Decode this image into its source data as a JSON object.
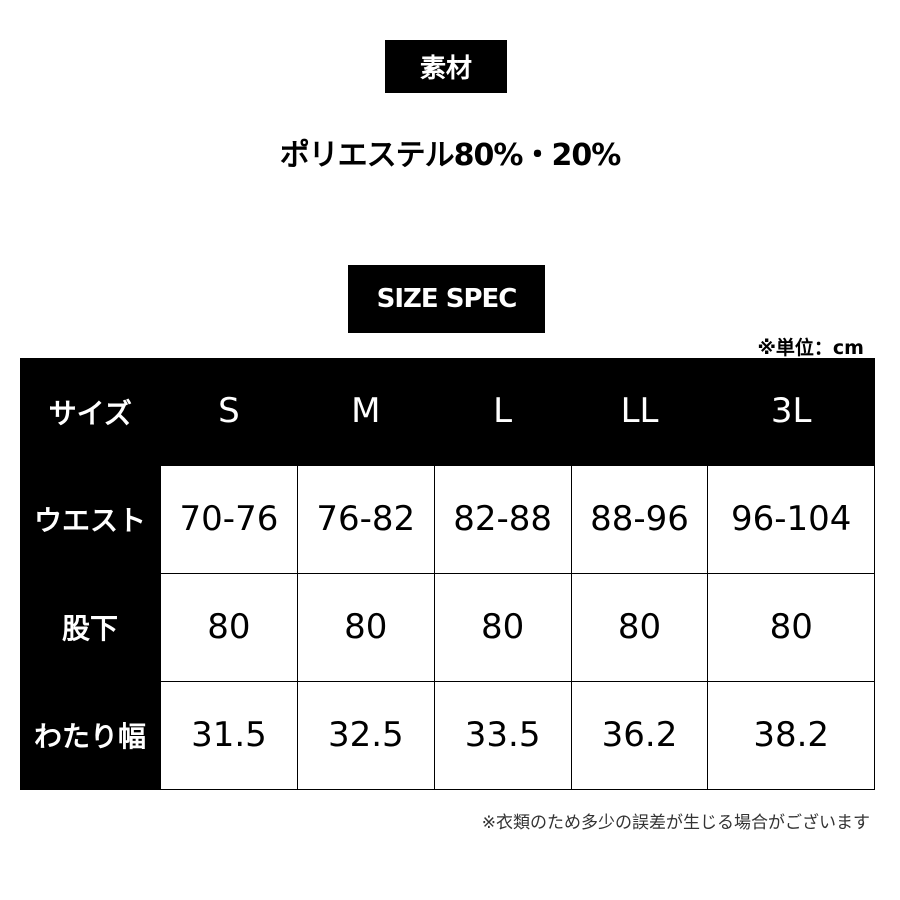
{
  "material": {
    "heading": "素材",
    "text": "ポリエステル80%・20%"
  },
  "spec": {
    "heading": "SIZE SPEC",
    "unit": "※単位：cm",
    "header": [
      "サイズ",
      "S",
      "M",
      "L",
      "LL",
      "3L"
    ],
    "rows": [
      {
        "label": "ウエスト",
        "values": [
          "70-76",
          "76-82",
          "82-88",
          "88-96",
          "96-104"
        ]
      },
      {
        "label": "股下",
        "values": [
          "80",
          "80",
          "80",
          "80",
          "80"
        ]
      },
      {
        "label": "わたり幅",
        "values": [
          "31.5",
          "32.5",
          "33.5",
          "36.2",
          "38.2"
        ]
      }
    ]
  },
  "note": "※衣類のため多少の誤差が生じる場合がございます"
}
